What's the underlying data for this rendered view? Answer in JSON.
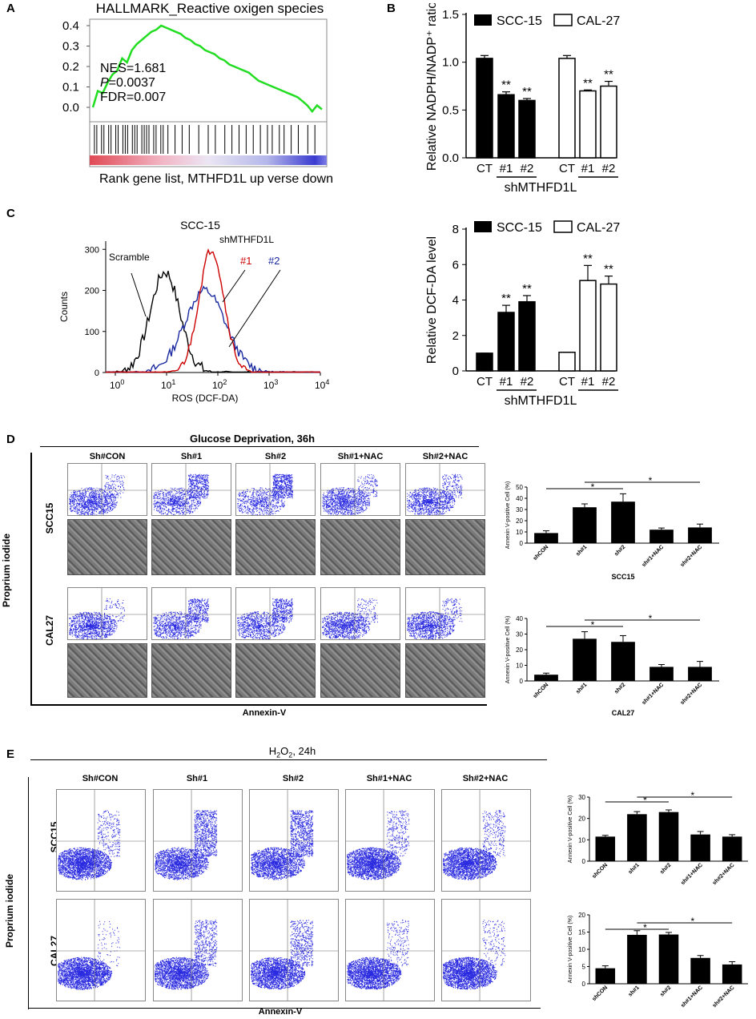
{
  "panels": {
    "A": {
      "letter": "A",
      "title": "HALLMARK_Reactive oxigen species",
      "stats": {
        "nes": "NES=1.681",
        "p_label": "P",
        "p_value": "=0.0037",
        "fdr": "FDR=0.007"
      },
      "xlabel": "Rank gene list, MTHFD1L up verse down",
      "yticks": [
        "0.4",
        "0.3",
        "0.2",
        "0.1",
        "0.0"
      ],
      "line_color": "#22dd22",
      "enrichment": [
        0.0,
        0.08,
        0.07,
        0.12,
        0.16,
        0.18,
        0.24,
        0.22,
        0.28,
        0.31,
        0.33,
        0.35,
        0.37,
        0.38,
        0.4,
        0.39,
        0.38,
        0.37,
        0.36,
        0.34,
        0.33,
        0.31,
        0.3,
        0.28,
        0.27,
        0.26,
        0.24,
        0.23,
        0.21,
        0.2,
        0.19,
        0.18,
        0.17,
        0.15,
        0.13,
        0.12,
        0.11,
        0.1,
        0.09,
        0.08,
        0.07,
        0.06,
        0.05,
        0.03,
        0.01,
        -0.02,
        0.01,
        -0.01
      ],
      "hits": [
        0.02,
        0.03,
        0.05,
        0.06,
        0.08,
        0.09,
        0.11,
        0.12,
        0.14,
        0.15,
        0.16,
        0.18,
        0.19,
        0.2,
        0.22,
        0.23,
        0.24,
        0.25,
        0.27,
        0.28,
        0.3,
        0.31,
        0.33,
        0.36,
        0.39,
        0.42,
        0.46,
        0.5,
        0.53,
        0.57,
        0.6,
        0.63,
        0.66,
        0.69,
        0.72,
        0.75,
        0.77,
        0.8,
        0.82,
        0.85,
        0.88,
        0.92,
        0.95
      ]
    },
    "B": {
      "letter": "B",
      "chart_data": {
        "type": "bar",
        "ylabel": "Relative NADPH/NADP⁺ ratio",
        "ylim": [
          0,
          1.5
        ],
        "yticks": [
          "0.0",
          "0.5",
          "1.0",
          "1.5"
        ],
        "categories": [
          "CT",
          "#1",
          "#2",
          "CT",
          "#1",
          "#2"
        ],
        "groups": [
          {
            "name": "SCC-15",
            "values": [
              1.04,
              0.66,
              0.6
            ]
          },
          {
            "name": "CAL-27",
            "values": [
              1.04,
              0.7,
              0.75
            ]
          }
        ],
        "sig": [
          "",
          "**",
          "**",
          "",
          "**",
          "**"
        ],
        "group_label": "shMTHFD1L",
        "legend": [
          "SCC-15",
          "CAL-27"
        ]
      }
    },
    "C": {
      "letter": "C",
      "title": "SCC-15",
      "ylabel": "Counts",
      "xlabel": "ROS (DCF-DA)",
      "yticks": [
        "300",
        "200",
        "100",
        "0"
      ],
      "xticks": [
        {
          "b": "10",
          "e": "0"
        },
        {
          "b": "10",
          "e": "1"
        },
        {
          "b": "10",
          "e": "2"
        },
        {
          "b": "10",
          "e": "3"
        },
        {
          "b": "10",
          "e": "4"
        }
      ],
      "labels": {
        "scramble": "Scramble",
        "sh": "shMTHFD1L",
        "n1": "#1",
        "n2": "#2"
      },
      "colors": {
        "scramble": "#000000",
        "n1": "#cc0000",
        "n2": "#1a2aa0"
      },
      "bars": {
        "type": "bar",
        "ylabel": "Relative DCF-DA level",
        "ylim": [
          0,
          8
        ],
        "yticks": [
          "0",
          "2",
          "4",
          "6",
          "8"
        ],
        "categories": [
          "CT",
          "#1",
          "#2",
          "CT",
          "#1",
          "#2"
        ],
        "groups": [
          {
            "name": "SCC-15",
            "values": [
              1.0,
              3.3,
              3.9
            ]
          },
          {
            "name": "CAL-27",
            "values": [
              1.05,
              5.1,
              4.9
            ]
          }
        ],
        "sig": [
          "",
          "**",
          "**",
          "",
          "**",
          "**"
        ],
        "group_label": "shMTHFD1L",
        "legend": [
          "SCC-15",
          "CAL-27"
        ]
      }
    },
    "D": {
      "letter": "D",
      "title": "Glucose Deprivation, 36h",
      "columns": [
        "Sh#CON",
        "Sh#1",
        "Sh#2",
        "Sh#1+NAC",
        "Sh#2+NAC"
      ],
      "rows": [
        "SCC15",
        "CAL27"
      ],
      "ylabel": "Proprium iodide",
      "xlabel": "Annexin-V",
      "charts": [
        {
          "type": "bar",
          "ylabel": "Annexin V-positive Cell (%)",
          "ylim": [
            0,
            50
          ],
          "yticks": [
            "0",
            "10",
            "20",
            "30",
            "40",
            "50"
          ],
          "categories": [
            "shCON",
            "sh#1",
            "sh#2",
            "sh#1+NAC",
            "sh#2+NAC"
          ],
          "values": [
            9,
            32,
            37,
            12,
            14
          ],
          "xlabel": "SCC15",
          "sig": [
            "*",
            "*"
          ]
        },
        {
          "type": "bar",
          "ylabel": "Annexin V-positive Cell (%)",
          "ylim": [
            0,
            40
          ],
          "yticks": [
            "0",
            "10",
            "20",
            "30",
            "40"
          ],
          "categories": [
            "shCON",
            "sh#1",
            "sh#2",
            "sh#1+NAC",
            "sh#2+NAC"
          ],
          "values": [
            4,
            27,
            25,
            9,
            9
          ],
          "xlabel": "CAL27",
          "sig": [
            "*",
            "*"
          ]
        }
      ]
    },
    "E": {
      "letter": "E",
      "title_main": "H",
      "title_sub": "2",
      "title_mid": "O",
      "title_end": ", 24h",
      "columns": [
        "Sh#CON",
        "Sh#1",
        "Sh#2",
        "Sh#1+NAC",
        "Sh#2+NAC"
      ],
      "rows": [
        "SCC15",
        "CAL27"
      ],
      "ylabel": "Proprium iodide",
      "xlabel": "Annexin-V",
      "charts": [
        {
          "type": "bar",
          "ylabel": "Annexin V-positive Cell (%)",
          "ylim": [
            0,
            30
          ],
          "yticks": [
            "0",
            "10",
            "20",
            "30"
          ],
          "categories": [
            "shCON",
            "sh#1",
            "sh#2",
            "sh#1+NAC",
            "sh#2+NAC"
          ],
          "values": [
            11.5,
            22,
            23,
            12.5,
            11.5
          ],
          "sig": [
            "*",
            "*"
          ]
        },
        {
          "type": "bar",
          "ylabel": "Annexin V-positive Cell (%)",
          "ylim": [
            0,
            20
          ],
          "yticks": [
            "0",
            "5",
            "10",
            "15",
            "20"
          ],
          "categories": [
            "shCON",
            "sh#1",
            "sh#2",
            "sh#1+NAC",
            "sh#2+NAC"
          ],
          "values": [
            4.5,
            14.2,
            14.3,
            7.5,
            5.6
          ],
          "sig": [
            "*",
            "*"
          ]
        }
      ]
    }
  }
}
